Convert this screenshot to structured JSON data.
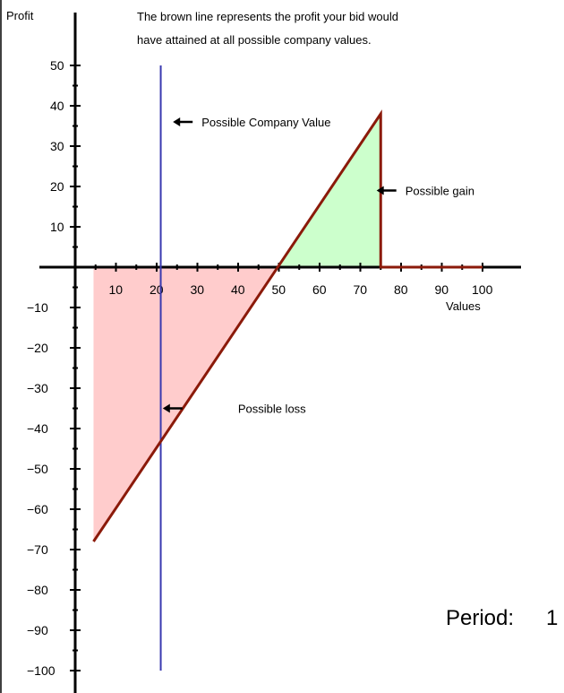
{
  "description_lines": [
    "The brown line represents the profit your bid would",
    "have attained at all possible company values."
  ],
  "period": {
    "label": "Period:",
    "value": "1"
  },
  "chart_data": {
    "type": "line",
    "ylabel": "Profit",
    "xlabel": "Values",
    "xlim": [
      0,
      100
    ],
    "ylim": [
      -100,
      50
    ],
    "x_ticks": [
      10,
      20,
      30,
      40,
      50,
      60,
      70,
      80,
      90,
      100
    ],
    "y_ticks": [
      50,
      40,
      30,
      20,
      10,
      -10,
      -20,
      -30,
      -40,
      -50,
      -60,
      -70,
      -80,
      -90,
      -100
    ],
    "profit_line": {
      "color": "#8b1a0a",
      "points": [
        [
          4.5,
          -68
        ],
        [
          75,
          38
        ],
        [
          75,
          0
        ],
        [
          100,
          0
        ]
      ]
    },
    "loss_region": {
      "color": "#ffcccc",
      "points": [
        [
          4.5,
          -68
        ],
        [
          50,
          0
        ],
        [
          4.5,
          0
        ]
      ]
    },
    "gain_region": {
      "color": "#ccffcc",
      "points": [
        [
          50,
          0
        ],
        [
          75,
          38
        ],
        [
          75,
          0
        ]
      ]
    },
    "company_value_line": {
      "x": 21,
      "color": "#3a3ab0"
    },
    "annotations": [
      {
        "text": "Possible Company Value",
        "x": 24,
        "y": 36
      },
      {
        "text": "Possible gain",
        "x": 74,
        "y": 19
      },
      {
        "text": "Possible loss",
        "x": 21.5,
        "y": -35
      }
    ]
  }
}
